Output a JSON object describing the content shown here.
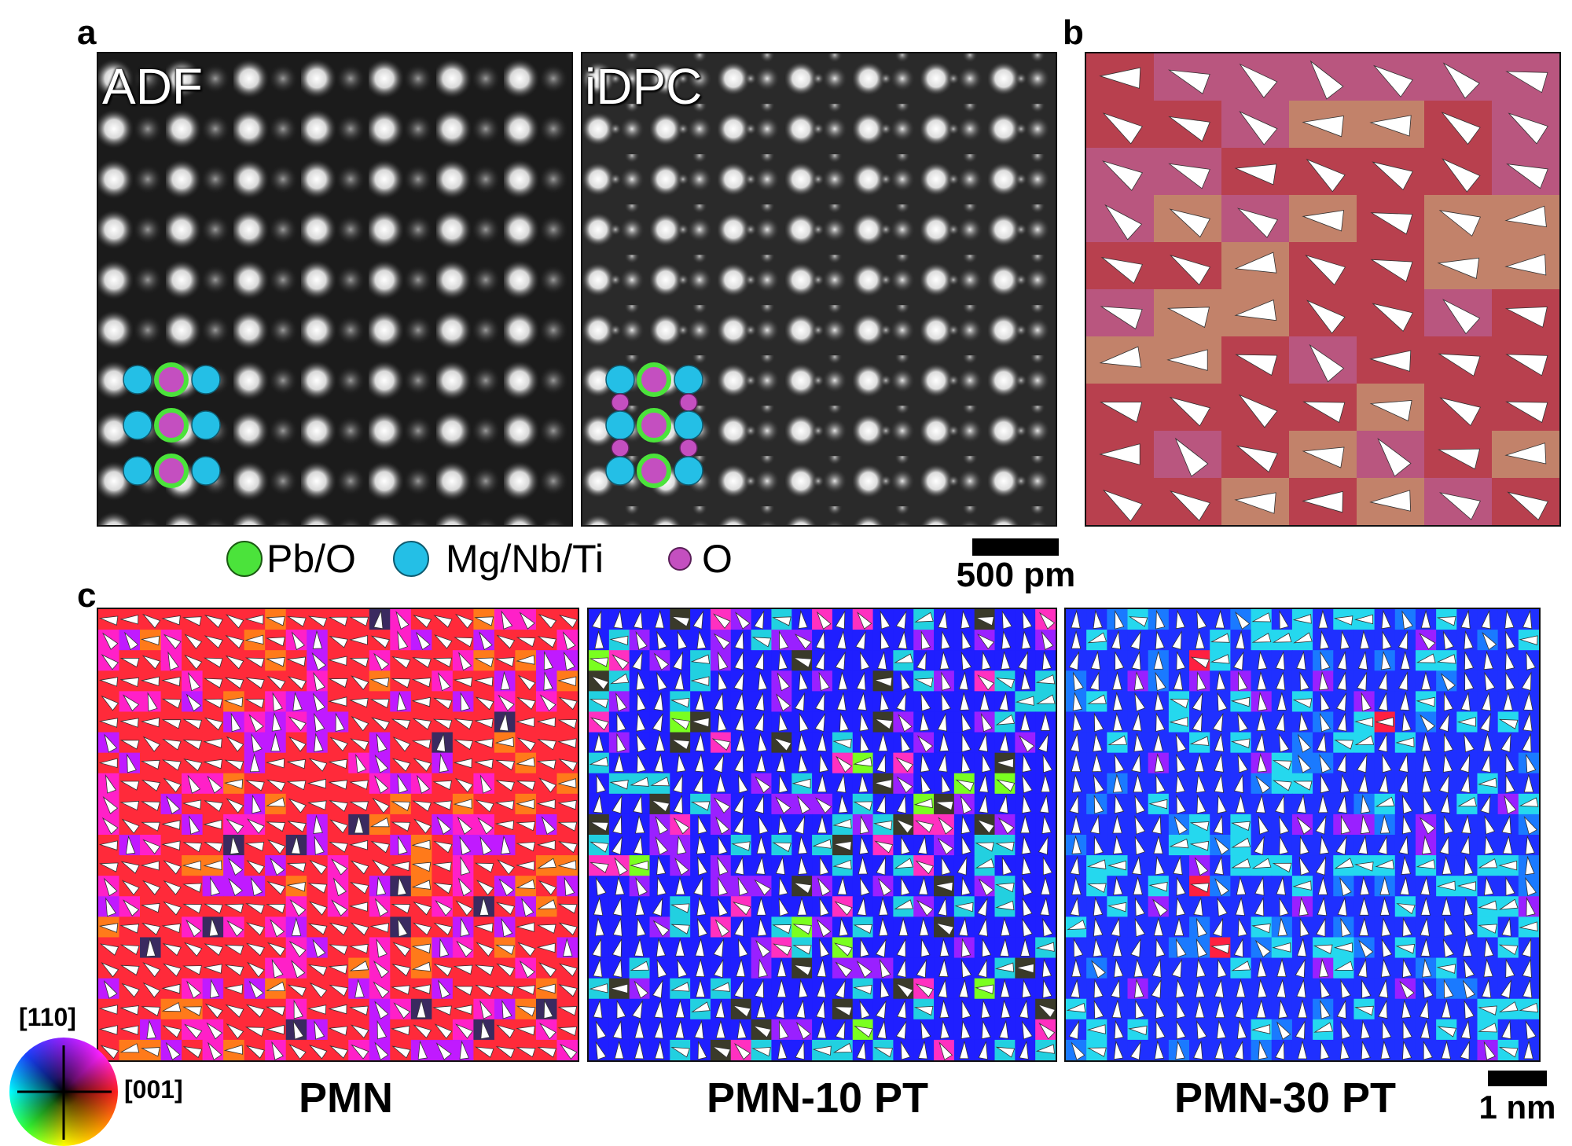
{
  "panel_labels": {
    "a": "a",
    "b": "b",
    "c": "c"
  },
  "panel_a": {
    "adf_title": "ADF",
    "idpc_title": "iDPC",
    "legend": [
      {
        "label": "Pb/O",
        "color": "#4be33b",
        "icon": "pb-o-circle-icon"
      },
      {
        "label": "Mg/Nb/Ti",
        "color": "#24bfe6",
        "icon": "mg-nb-ti-circle-icon"
      },
      {
        "label": "O",
        "color": "#c44fc0",
        "icon": "o-circle-icon"
      }
    ],
    "scalebar_label": "500 pm"
  },
  "panel_c": {
    "samples": [
      "PMN",
      "PMN-10 PT",
      "PMN-30 PT"
    ],
    "scalebar_label": "1 nm",
    "colorwheel_axis_vertical": "[110]",
    "colorwheel_axis_horizontal": "[001]"
  },
  "colors": {
    "pmn_dominant": "#ff2244",
    "pmn10_dominant": "#1a1aff",
    "pmn30_dominant": "#1a5aff",
    "atom_bright": "#ffffff",
    "atom_background": "#1b1b1b"
  }
}
